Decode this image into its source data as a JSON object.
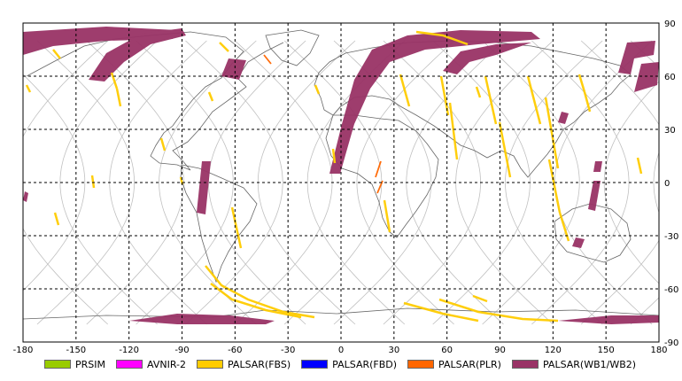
{
  "map": {
    "lon_ticks": [
      "-180",
      "-150",
      "-120",
      "-90",
      "-60",
      "-30",
      "0",
      "30",
      "60",
      "90",
      "120",
      "150",
      "180"
    ],
    "lat_ticks": [
      "90",
      "60",
      "30",
      "0",
      "-30",
      "-60",
      "-90"
    ],
    "lon_range": [
      -180,
      180
    ],
    "lat_range": [
      -90,
      90
    ],
    "grid": "dashed"
  },
  "legend": {
    "items": [
      {
        "label": "PRSIM",
        "color": "#99cc00"
      },
      {
        "label": "AVNIR-2",
        "color": "#ff00ff"
      },
      {
        "label": "PALSAR(FBS)",
        "color": "#ffcc00"
      },
      {
        "label": "PALSAR(FBD)",
        "color": "#0000ff"
      },
      {
        "label": "PALSAR(PLR)",
        "color": "#ff6600"
      },
      {
        "label": "PALSAR(WB1/WB2)",
        "color": "#993366"
      }
    ]
  },
  "colors": {
    "wb": "#993366",
    "fbs": "#ffcc00",
    "plr": "#ff6600",
    "coast": "#555555",
    "orbit": "#c0c0c0"
  }
}
